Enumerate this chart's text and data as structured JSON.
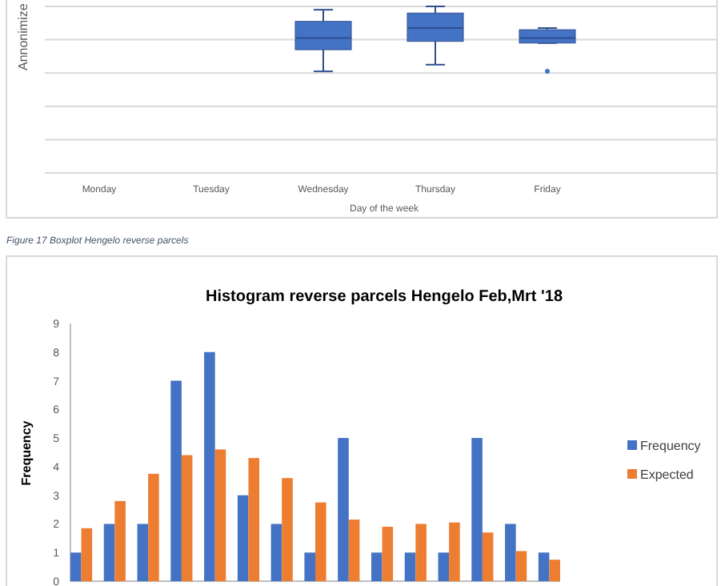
{
  "chart_data": [
    {
      "type": "other",
      "ylabel": "Annonimize",
      "xlabel": "Day of the week",
      "categories": [
        "Monday",
        "Tuesday",
        "Wednesday",
        "Thursday",
        "Friday"
      ],
      "annotations": [
        "Figure 17 Boxplot Hengelo reverse parcels"
      ]
    },
    {
      "type": "bar",
      "title": "Histogram reverse parcels Hengelo Feb,Mrt '18",
      "ylabel": "Frequency",
      "categories": [
        null,
        null,
        null,
        null,
        null,
        null,
        null,
        null,
        null,
        null,
        null,
        null,
        null,
        null,
        null
      ],
      "ylim": [
        0,
        9
      ],
      "yticks": [
        0,
        1,
        2,
        3,
        4,
        5,
        6,
        7,
        8,
        9
      ],
      "grid": false,
      "legend": "right",
      "series": [
        {
          "name": "Frequency",
          "color": "#4472c4",
          "values": [
            1,
            2,
            2,
            7,
            8,
            3,
            2,
            1,
            5,
            1,
            1,
            1,
            5,
            2,
            1
          ]
        },
        {
          "name": "Expected",
          "color": "#ed7d31",
          "values": [
            1.85,
            2.8,
            3.75,
            4.4,
            4.6,
            4.3,
            3.6,
            2.75,
            2.15,
            1.9,
            2.0,
            2.05,
            1.7,
            1.05,
            0.75
          ]
        }
      ]
    }
  ]
}
